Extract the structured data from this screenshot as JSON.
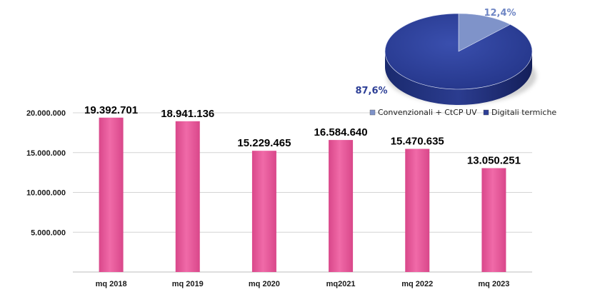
{
  "chart_data": [
    {
      "type": "bar",
      "categories": [
        "mq 2018",
        "mq 2019",
        "mq 2020",
        "mq2021",
        "mq 2022",
        "mq 2023"
      ],
      "values": [
        19392701,
        18941136,
        15229465,
        16584640,
        15470635,
        13050251
      ],
      "value_labels": [
        "19.392.701",
        "18.941.136",
        "15.229.465",
        "16.584.640",
        "15.470.635",
        "13.050.251"
      ],
      "yticks": [
        5000000,
        10000000,
        15000000,
        20000000
      ],
      "ytick_labels": [
        "5.000.000",
        "10.000.000",
        "15.000.000",
        "20.000.000"
      ],
      "ylim": [
        0,
        20000000
      ],
      "grid": true,
      "bar_color": "#e7559a"
    },
    {
      "type": "pie",
      "slices": [
        {
          "name": "Convenzionali + CtCP UV",
          "value": 12.4,
          "label": "12,4%",
          "color": "#7f93c9"
        },
        {
          "name": "Digitali termiche",
          "value": 87.6,
          "label": "87,6%",
          "color": "#2d3f96"
        }
      ],
      "legend": "bottom",
      "style": "3d"
    }
  ]
}
